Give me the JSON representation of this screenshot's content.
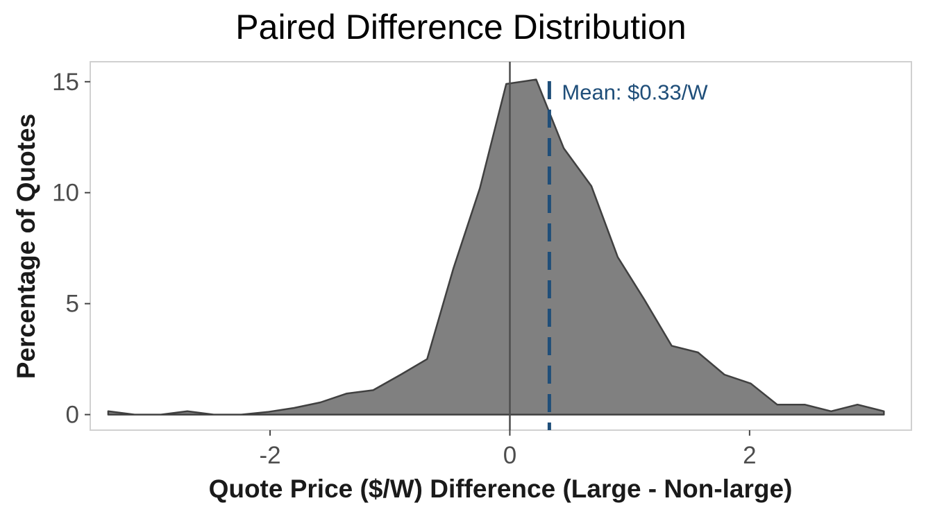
{
  "chart_data": {
    "type": "area",
    "title": "Paired Difference Distribution",
    "xlabel": "Quote Price ($/W) Difference (Large - Non-large)",
    "ylabel": "Percentage of Quotes",
    "xlim": [
      -3.5,
      3.35
    ],
    "ylim": [
      -0.7,
      15.9
    ],
    "x_ticks": [
      -2,
      0,
      2
    ],
    "y_ticks": [
      0,
      5,
      10,
      15
    ],
    "x_tick_labels": [
      "-2",
      "0",
      "2"
    ],
    "y_tick_labels": [
      "0",
      "5",
      "10",
      "15"
    ],
    "grid": false,
    "fill_color": "#808080",
    "line_color": "#404040",
    "series": [
      {
        "x": [
          -3.35,
          -3.13,
          -2.91,
          -2.69,
          -2.47,
          -2.24,
          -2.02,
          -1.8,
          -1.58,
          -1.36,
          -1.14,
          -0.91,
          -0.69,
          -0.47,
          -0.25,
          -0.03,
          0.22,
          0.45,
          0.68,
          0.9,
          1.12,
          1.35,
          1.57,
          1.79,
          2.01,
          2.23,
          2.46,
          2.68,
          2.9,
          3.12
        ],
        "values": [
          0.15,
          0.0,
          0.0,
          0.15,
          0.0,
          0.0,
          0.12,
          0.3,
          0.55,
          0.95,
          1.1,
          1.8,
          2.5,
          6.6,
          10.2,
          14.9,
          15.1,
          12.0,
          10.3,
          7.1,
          5.2,
          3.1,
          2.8,
          1.8,
          1.4,
          0.45,
          0.45,
          0.15,
          0.45,
          0.15
        ]
      }
    ],
    "reference_lines": [
      {
        "x": 0,
        "style": "solid",
        "color": "#4d4d4d"
      },
      {
        "x": 0.33,
        "style": "dashed",
        "color": "#1f4e79",
        "label": "Mean: $0.33/W"
      }
    ]
  }
}
